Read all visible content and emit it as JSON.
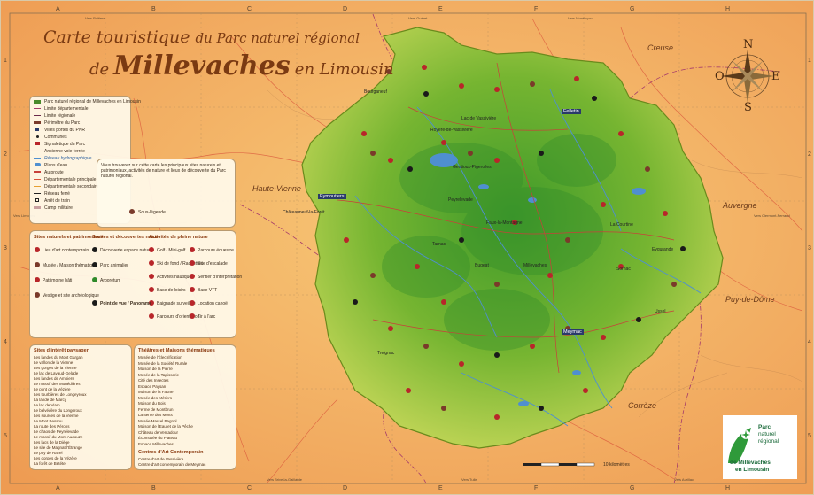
{
  "title": {
    "line1_a": "Carte touristique",
    "line1_b": "du Parc naturel régional",
    "line2_pre": "de",
    "line2_main": "Millevaches",
    "line2_post": "en Limousin"
  },
  "grid": {
    "columns": [
      "A",
      "B",
      "C",
      "D",
      "E",
      "F",
      "G",
      "H"
    ],
    "rows": [
      "1",
      "2",
      "3",
      "4",
      "5"
    ]
  },
  "compass": {
    "n": "N",
    "s": "S",
    "e": "E",
    "o": "O"
  },
  "regions": {
    "creuse": "Creuse",
    "haute_vienne": "Haute-Vienne",
    "auvergne": "Auvergne",
    "puy_de_dome": "Puy-de-Dôme",
    "correze": "Corrèze"
  },
  "towns": [
    {
      "name": "Eymoutiers",
      "boxed": true
    },
    {
      "name": "Felletin",
      "boxed": true
    },
    {
      "name": "Meymac",
      "boxed": true
    },
    {
      "name": "Peyrelevade",
      "boxed": false
    },
    {
      "name": "Bugeat",
      "boxed": false
    },
    {
      "name": "Sornac",
      "boxed": false
    },
    {
      "name": "La Courtine",
      "boxed": false
    },
    {
      "name": "Gentioux-Pigerolles",
      "boxed": false
    },
    {
      "name": "Royère-de-Vassivière",
      "boxed": false
    },
    {
      "name": "Bourganeuf",
      "boxed": false
    },
    {
      "name": "Treignac",
      "boxed": false
    },
    {
      "name": "Ussel",
      "boxed": false
    },
    {
      "name": "Châteauneuf-la-Forêt",
      "boxed": false
    },
    {
      "name": "Millevaches",
      "boxed": false
    },
    {
      "name": "Tarnac",
      "boxed": false
    },
    {
      "name": "Eygurande",
      "boxed": false
    },
    {
      "name": "Faux-la-Montagne",
      "boxed": false
    },
    {
      "name": "Lac de Vassivière",
      "boxed": false
    }
  ],
  "legend": {
    "items": [
      "Parc naturel régional de Millevaches en Limousin",
      "Limite départementale",
      "Limite régionale",
      "Périmètre du Parc",
      "Villes portes du PNR",
      "Communes",
      "Signalétique du Parc",
      "Ancienne voie ferrée",
      "Réseau hydrographique",
      "Plans d'eau",
      "Autoroute",
      "Départementale principale",
      "Départementale secondaire",
      "Réseau ferré",
      "Arrêt de train",
      "Camp militaire"
    ]
  },
  "intro_text": "Vous trouverez sur cette carte les principaux sites naturels et patrimoniaux, activités de nature et lieux de découverte du Parc naturel régional.",
  "intro_icon_label": "Sous-légende",
  "activities": {
    "col1_title": "Sites naturels et patrimoniaux",
    "col2_title": "Sorties et découvertes nature",
    "col3_title": "Activités de pleine nature",
    "col1": [
      "Lieu d'art contemporain",
      "Musée / Maison thématique",
      "Patrimoine bâti",
      "Vestige et site archéologique"
    ],
    "col2": [
      "Découverte espace naturel",
      "Parc animalier",
      "Arboretum"
    ],
    "col3": [
      "Golf / Mini-golf",
      "Ski de fond / Raquettes",
      "Activités nautiques",
      "Base de loisirs",
      "Baignade surveillée",
      "Parcours d'orientation"
    ],
    "col4": [
      "Parcours équestre",
      "Site d'escalade",
      "Sentier d'interprétation",
      "Base VTT",
      "Location canoë",
      "Tir à l'arc"
    ],
    "point_label": "Point de vue / Panorama"
  },
  "sites_list": {
    "title": "Sites d'intérêt paysager",
    "items": [
      "Les landes du Mont Gargan",
      "Le vallon de la Vienne",
      "Les gorges de la Vienne",
      "Le lac de Lavaud-Gelade",
      "Les landes de Ambiers",
      "Le massif des Monédières",
      "Le pont de la Vézère",
      "Les tourbières de Longeyroux",
      "La lande de Marcy",
      "Le lac de Viam",
      "Le belvédère du Longeroux",
      "Les sources de la Vienne",
      "Le Mont Bessou",
      "La route des Pérons",
      "Le chaos de Peyrelevade",
      "Le massif du Mont Audouze",
      "Les lacs de la Diège",
      "Le site de Magnat-l'Étrange",
      "Le puy de Razel",
      "Les gorges de la Vézère",
      "La forêt de Bététe"
    ]
  },
  "themes_list": {
    "title": "Théâtres et Maisons thématiques",
    "items": [
      "Musée de l'Électrification",
      "Musée de la Société Rurale",
      "Maison de la Pierre",
      "Musée de la Tapisserie",
      "Cité des Insectes",
      "Espace Paysan",
      "Maison de la Faune",
      "Musée des Métiers",
      "Maison du Bois",
      "Ferme de Montbrun",
      "Lanterne des Morts",
      "Musée Marcel Pagnol",
      "Maison de l'Eau et de la Pêche",
      "Château de Ventadour",
      "Écomusée du Plateau",
      "Espace Millevaches"
    ],
    "art_title": "Centres d'Art Contemporain",
    "art_items": [
      "Centre d'art de Vassivière",
      "Centre d'art contemporain de Meymac"
    ]
  },
  "logo": {
    "line1": "Parc",
    "line2": "naturel",
    "line3": "régional",
    "line4": "de Millevaches",
    "line5": "en Limousin"
  },
  "scale_label": "10 kilomètres",
  "edge_labels": [
    "Vers Poitiers",
    "Vers Guéret",
    "Vers Montluçon",
    "Vers Clermont-Ferrand",
    "Vers Brive-la-Gaillarde",
    "Vers Tulle",
    "Vers Aurillac",
    "Vers Limoges"
  ],
  "colors": {
    "park_green": "#7fb82e",
    "background": "#f4b96a",
    "title": "#7a3a12",
    "water": "#4f8fd0"
  }
}
